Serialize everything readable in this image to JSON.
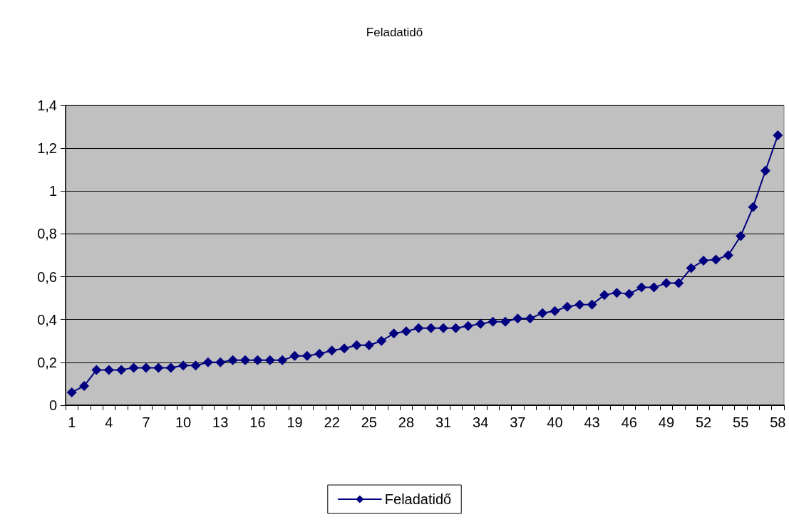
{
  "chart_data": {
    "type": "line",
    "title": "Feladatidő",
    "categories": [
      "1",
      null,
      null,
      "4",
      null,
      null,
      "7",
      null,
      null,
      "10",
      null,
      null,
      "13",
      null,
      null,
      "16",
      null,
      null,
      "19",
      null,
      null,
      "22",
      null,
      null,
      "25",
      null,
      null,
      "28",
      null,
      null,
      "31",
      null,
      null,
      "34",
      null,
      null,
      "37",
      null,
      null,
      "40",
      null,
      null,
      "43",
      null,
      null,
      "46",
      null,
      null,
      "49",
      null,
      null,
      "52",
      null,
      null,
      "55",
      null,
      null,
      "58"
    ],
    "series": [
      {
        "name": "Feladatidő",
        "color": "#000080",
        "values": [
          0.06,
          0.09,
          0.165,
          0.165,
          0.165,
          0.175,
          0.175,
          0.175,
          0.175,
          0.185,
          0.185,
          0.2,
          0.2,
          0.21,
          0.21,
          0.21,
          0.21,
          0.21,
          0.23,
          0.23,
          0.24,
          0.255,
          0.265,
          0.28,
          0.28,
          0.3,
          0.335,
          0.345,
          0.36,
          0.36,
          0.36,
          0.36,
          0.37,
          0.38,
          0.39,
          0.39,
          0.405,
          0.405,
          0.43,
          0.44,
          0.46,
          0.47,
          0.47,
          0.515,
          0.525,
          0.52,
          0.55,
          0.55,
          0.57,
          0.57,
          0.64,
          0.675,
          0.68,
          0.7,
          0.79,
          0.925,
          1.095,
          1.26
        ]
      }
    ],
    "ylim": [
      0,
      1.4
    ],
    "yticks": [
      0,
      {
        "value": 0.2,
        "label": "0,2"
      },
      {
        "value": 0.4,
        "label": "0,4"
      },
      {
        "value": 0.6,
        "label": "0,6"
      },
      {
        "value": 0.8,
        "label": "0,8"
      },
      1,
      {
        "value": 1.2,
        "label": "1,2"
      },
      {
        "value": 1.4,
        "label": "1,4"
      }
    ],
    "grid": "y",
    "legend": "bottom",
    "marker": "diamond",
    "line_style": "solid"
  }
}
